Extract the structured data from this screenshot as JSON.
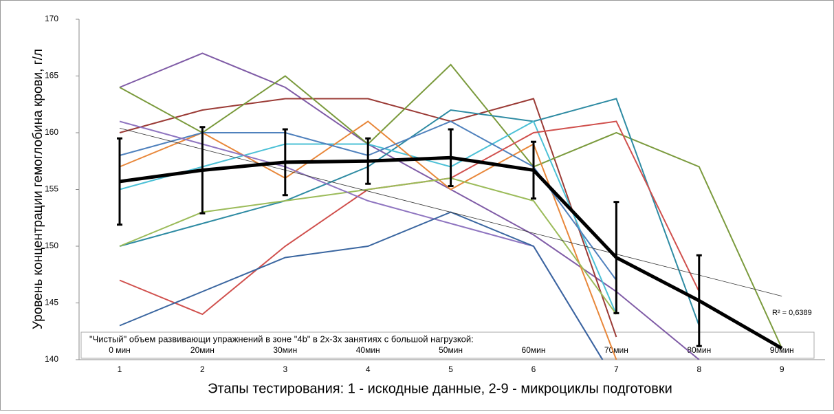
{
  "chart_data": {
    "type": "line",
    "y_label": "Уровень концентрации гемоглобина крови, г/л",
    "x_label": "Этапы тестирования: 1 - искодные данные, 2-9 - микроциклы подготовки",
    "categories": [
      "1",
      "2",
      "3",
      "4",
      "5",
      "6",
      "7",
      "8",
      "9"
    ],
    "ylim": [
      140,
      170
    ],
    "yticks": [
      140,
      145,
      150,
      155,
      160,
      165,
      170
    ],
    "series": [
      {
        "color": "#7f5ba6",
        "values": [
          164,
          167,
          164,
          159,
          155,
          151,
          146,
          140,
          null
        ]
      },
      {
        "color": "#9b3b36",
        "values": [
          160,
          162,
          163,
          163,
          161,
          163,
          142,
          null,
          null
        ]
      },
      {
        "color": "#7a9a3c",
        "values": [
          164,
          160,
          165,
          159,
          166,
          157,
          160,
          157,
          141
        ]
      },
      {
        "color": "#2e8ba3",
        "values": [
          150,
          152,
          154,
          157,
          162,
          161,
          163,
          143,
          null
        ]
      },
      {
        "color": "#4bc0d6",
        "values": [
          155,
          157,
          159,
          159,
          157,
          161,
          144,
          null,
          null
        ]
      },
      {
        "color": "#e8873a",
        "values": [
          157,
          160,
          156,
          161,
          155,
          159,
          140,
          null,
          null
        ]
      },
      {
        "color": "#4f81bd",
        "values": [
          158,
          160,
          160,
          158,
          161,
          157,
          147,
          null,
          null
        ]
      },
      {
        "color": "#d0504d",
        "values": [
          147,
          144,
          150,
          155,
          156,
          160,
          161,
          146,
          null
        ]
      },
      {
        "color": "#9bbb59",
        "values": [
          150,
          153,
          154,
          155,
          156,
          154,
          144,
          null,
          null
        ]
      },
      {
        "color": "#8f75c0",
        "values": [
          161,
          159,
          157,
          154,
          152,
          150,
          138,
          null,
          null
        ]
      },
      {
        "color": "#3a66a0",
        "values": [
          143,
          146,
          149,
          150,
          153,
          150,
          138,
          null,
          null
        ]
      }
    ],
    "mean": {
      "color": "#000000",
      "values": [
        155.7,
        156.7,
        157.4,
        157.5,
        157.8,
        156.7,
        149,
        145.2,
        141
      ],
      "errors": [
        3.8,
        3.8,
        2.9,
        2,
        2.5,
        2.5,
        4.9,
        4,
        null
      ]
    },
    "trendline": {
      "values": [
        160.4,
        145.6
      ],
      "label": "R² = 0,6389"
    },
    "annotation": {
      "text": "\"Чистый\" объем  развивающи упражнений в зоне \"4b\" в 2х-3х занятиях с большой нагрузкой:",
      "labels": [
        "0 мин",
        "20мин",
        "30мин",
        "40мин",
        "50мин",
        "60мин",
        "70мин",
        "80мин",
        "90мин"
      ]
    }
  }
}
